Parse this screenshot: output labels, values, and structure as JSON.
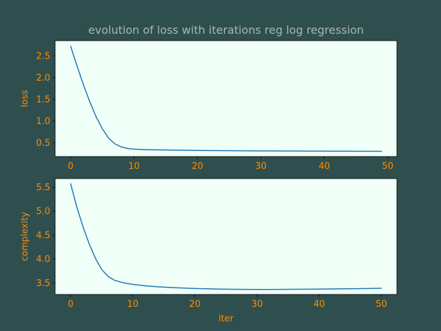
{
  "title": "evolution of loss with iterations reg log regression",
  "colors": {
    "figure_background": "#2f4f4f",
    "axes_background": "#f0fff8",
    "line": "#1f77b4",
    "label_text": "#ff8c00",
    "title_text": "#a9b5b5"
  },
  "chart_data": [
    {
      "type": "line",
      "title": "evolution of loss with iterations reg log regression",
      "xlabel": "",
      "ylabel": "loss",
      "xlim": [
        -2.45,
        51.45
      ],
      "ylim": [
        0.18,
        2.85
      ],
      "xticks": [
        0,
        10,
        20,
        30,
        40,
        50
      ],
      "xtick_labels": [
        "0",
        "10",
        "20",
        "30",
        "40",
        "50"
      ],
      "yticks": [
        0.5,
        1.0,
        1.5,
        2.0,
        2.5
      ],
      "ytick_labels": [
        "0.5",
        "1.0",
        "1.5",
        "2.0",
        "2.5"
      ],
      "grid": false,
      "x": [
        0,
        1,
        2,
        3,
        4,
        5,
        6,
        7,
        8,
        9,
        10,
        11,
        12,
        13,
        14,
        15,
        16,
        17,
        18,
        19,
        20,
        21,
        22,
        23,
        24,
        25,
        26,
        27,
        28,
        29,
        30,
        31,
        32,
        33,
        34,
        35,
        36,
        37,
        38,
        39,
        40,
        41,
        42,
        43,
        44,
        45,
        46,
        47,
        48,
        49
      ],
      "y": [
        2.72,
        2.27,
        1.84,
        1.45,
        1.1,
        0.82,
        0.6,
        0.47,
        0.4,
        0.365,
        0.35,
        0.343,
        0.338,
        0.335,
        0.333,
        0.331,
        0.329,
        0.327,
        0.325,
        0.323,
        0.321,
        0.319,
        0.318,
        0.317,
        0.316,
        0.315,
        0.314,
        0.313,
        0.312,
        0.311,
        0.31,
        0.309,
        0.309,
        0.308,
        0.308,
        0.307,
        0.307,
        0.306,
        0.306,
        0.305,
        0.305,
        0.304,
        0.304,
        0.303,
        0.303,
        0.302,
        0.302,
        0.301,
        0.301,
        0.3
      ]
    },
    {
      "type": "line",
      "title": "",
      "xlabel": "iter",
      "ylabel": "complexity",
      "xlim": [
        -2.5,
        52.5
      ],
      "ylim": [
        3.26,
        5.68
      ],
      "xticks": [
        0,
        10,
        20,
        30,
        40,
        50
      ],
      "xtick_labels": [
        "0",
        "10",
        "20",
        "30",
        "40",
        "50"
      ],
      "yticks": [
        3.5,
        4.0,
        4.5,
        5.0,
        5.5
      ],
      "ytick_labels": [
        "3.5",
        "4.0",
        "4.5",
        "5.0",
        "5.5"
      ],
      "grid": false,
      "x": [
        0,
        1,
        2,
        3,
        4,
        5,
        6,
        7,
        8,
        9,
        10,
        12,
        14,
        16,
        18,
        20,
        22,
        24,
        26,
        28,
        30,
        32,
        34,
        36,
        38,
        40,
        42,
        44,
        46,
        48,
        50
      ],
      "y": [
        5.57,
        5.08,
        4.67,
        4.31,
        4.01,
        3.78,
        3.64,
        3.56,
        3.52,
        3.49,
        3.47,
        3.44,
        3.42,
        3.405,
        3.395,
        3.385,
        3.378,
        3.372,
        3.368,
        3.366,
        3.365,
        3.365,
        3.366,
        3.368,
        3.37,
        3.372,
        3.375,
        3.378,
        3.381,
        3.385,
        3.39
      ]
    }
  ]
}
